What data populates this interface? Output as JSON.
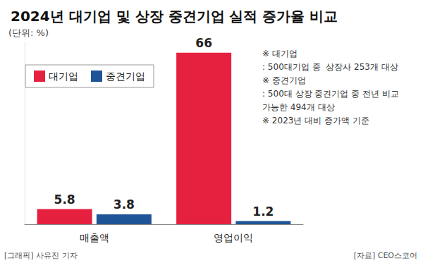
{
  "chart_data": {
    "type": "bar",
    "title": "2024년 대기업 및 상장 중견기업 실적 증가율 비교",
    "subtitle": "(단위: %)",
    "categories": [
      "매출액",
      "영업이익"
    ],
    "series": [
      {
        "name": "대기업",
        "color": "#e6213f",
        "values": [
          5.8,
          66
        ]
      },
      {
        "name": "중견기업",
        "color": "#1f5597",
        "values": [
          3.8,
          1.2
        ]
      }
    ],
    "ylim": [
      0,
      70
    ],
    "grid": false,
    "legend": "upper left",
    "data_labels": true,
    "tick_labels": "x",
    "notes": [
      "※ 대기업",
      ": 500대기업 중  상장사 253개 대상",
      "※ 중견기업",
      ": 500대 상장 중견기업 중 전년 비교",
      "가능한 494개 대상",
      "※ 2023년 대비 증가액 기준"
    ],
    "credit": "[그래픽] 사유진 기자",
    "source": "[자료] CEO스코어"
  }
}
